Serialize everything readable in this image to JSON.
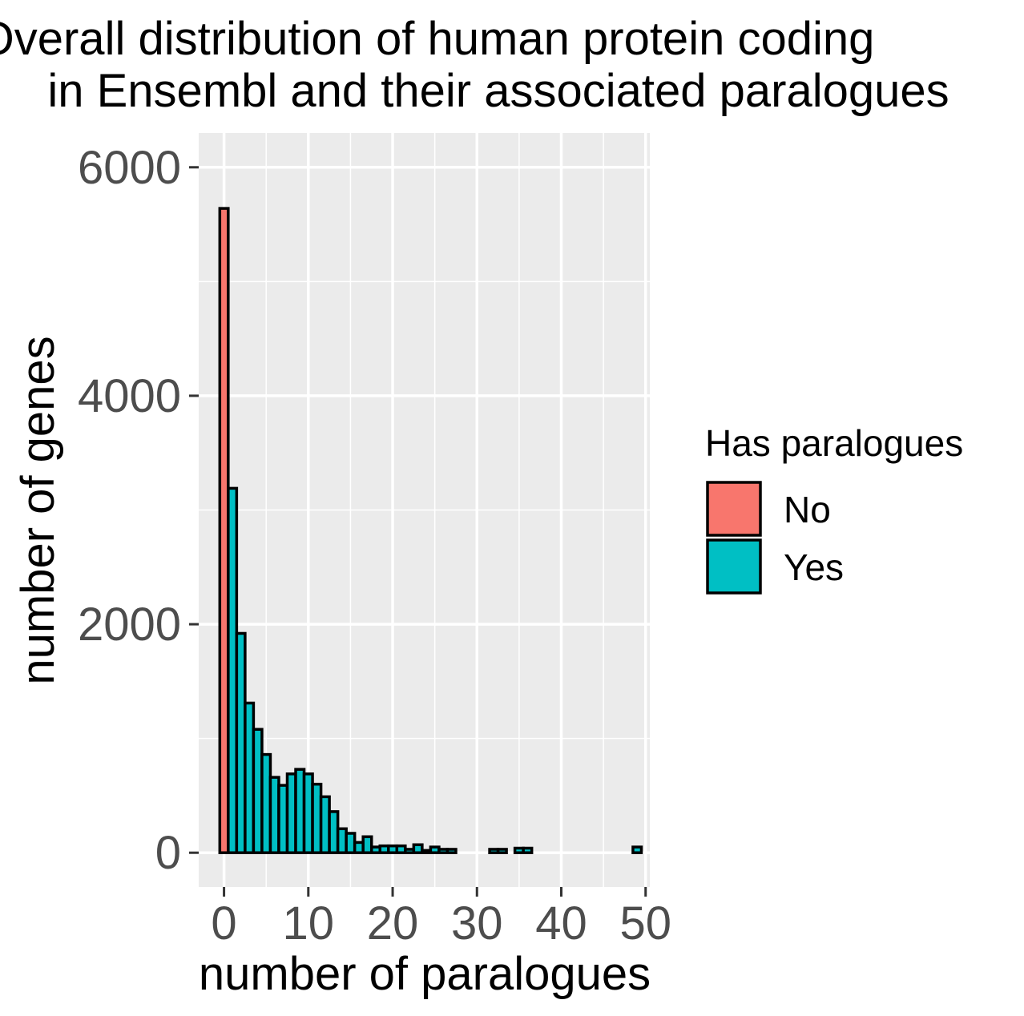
{
  "chart_data": {
    "type": "bar",
    "title_lines": [
      "Overall distribution of human protein coding",
      "in Ensembl and their associated paralogues"
    ],
    "xlabel": "number of paralogues",
    "ylabel": "number of genes",
    "xlim": [
      -3,
      50.5
    ],
    "ylim": [
      -300,
      6300
    ],
    "x_ticks": [
      0,
      10,
      20,
      30,
      40,
      50
    ],
    "x_tick_labels": [
      "0",
      "10",
      "20",
      "30",
      "40",
      "50"
    ],
    "y_ticks": [
      0,
      2000,
      4000,
      6000
    ],
    "y_tick_labels": [
      "0",
      "2000",
      "4000",
      "6000"
    ],
    "grid": true,
    "background": "#ebebeb",
    "legend": {
      "title": "Has paralogues",
      "position": "right",
      "entries": [
        {
          "label": "No",
          "color": "#f8766d"
        },
        {
          "label": "Yes",
          "color": "#00bfc4"
        }
      ]
    },
    "bin_width": 1,
    "series": [
      {
        "name": "No",
        "color": "#f8766d",
        "x": [
          0
        ],
        "values": [
          5640
        ]
      },
      {
        "name": "Yes",
        "color": "#00bfc4",
        "x": [
          1,
          2,
          3,
          4,
          5,
          6,
          7,
          8,
          9,
          10,
          11,
          12,
          13,
          14,
          15,
          16,
          17,
          18,
          19,
          20,
          21,
          22,
          23,
          24,
          25,
          26,
          27,
          28,
          29,
          30,
          31,
          32,
          33,
          34,
          35,
          36,
          37,
          38,
          39,
          40,
          41,
          42,
          43,
          44,
          45,
          46,
          47,
          48,
          49
        ],
        "values": [
          3190,
          1920,
          1310,
          1080,
          860,
          660,
          590,
          690,
          730,
          690,
          600,
          490,
          360,
          210,
          170,
          90,
          140,
          50,
          60,
          60,
          60,
          30,
          70,
          20,
          50,
          30,
          30,
          0,
          0,
          0,
          0,
          30,
          30,
          0,
          40,
          40,
          0,
          0,
          0,
          0,
          0,
          0,
          0,
          0,
          0,
          0,
          0,
          0,
          50
        ]
      }
    ]
  }
}
